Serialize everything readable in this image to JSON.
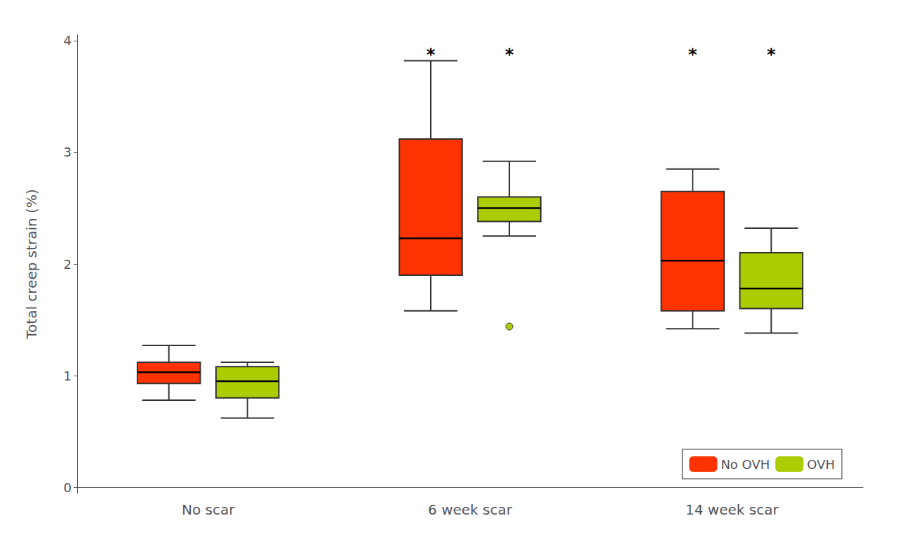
{
  "chart_data": {
    "type": "box",
    "ylabel": "Total creep strain (%)",
    "categories": [
      "No scar",
      "6 week scar",
      "14 week scar"
    ],
    "ylim": [
      -0.05,
      4.05
    ],
    "yticks": [
      0,
      1,
      2,
      3,
      4
    ],
    "grid": false,
    "legend": "lower right",
    "series": [
      {
        "name": "No OVH",
        "color": "#ff3300",
        "boxes": [
          {
            "whisker_low": 0.78,
            "q1": 0.93,
            "median": 1.03,
            "q3": 1.12,
            "whisker_high": 1.27,
            "outliers": []
          },
          {
            "whisker_low": 1.58,
            "q1": 1.9,
            "median": 2.23,
            "q3": 3.12,
            "whisker_high": 3.82,
            "outliers": []
          },
          {
            "whisker_low": 1.42,
            "q1": 1.58,
            "median": 2.03,
            "q3": 2.65,
            "whisker_high": 2.85,
            "outliers": []
          }
        ]
      },
      {
        "name": "OVH",
        "color": "#aacc00",
        "boxes": [
          {
            "whisker_low": 0.62,
            "q1": 0.8,
            "median": 0.95,
            "q3": 1.08,
            "whisker_high": 1.12,
            "outliers": []
          },
          {
            "whisker_low": 2.25,
            "q1": 2.38,
            "median": 2.5,
            "q3": 2.6,
            "whisker_high": 2.92,
            "outliers": [
              1.44
            ]
          },
          {
            "whisker_low": 1.38,
            "q1": 1.6,
            "median": 1.78,
            "q3": 2.1,
            "whisker_high": 2.32,
            "outliers": []
          }
        ]
      }
    ],
    "annotations": [
      {
        "text": "*",
        "x": "6 week scar",
        "series": "No OVH",
        "y": 3.95
      },
      {
        "text": "*",
        "x": "6 week scar",
        "series": "OVH",
        "y": 3.95
      },
      {
        "text": "*",
        "x": "14 week scar",
        "series": "No OVH",
        "y": 3.95
      },
      {
        "text": "*",
        "x": "14 week scar",
        "series": "OVH",
        "y": 3.95
      }
    ]
  }
}
